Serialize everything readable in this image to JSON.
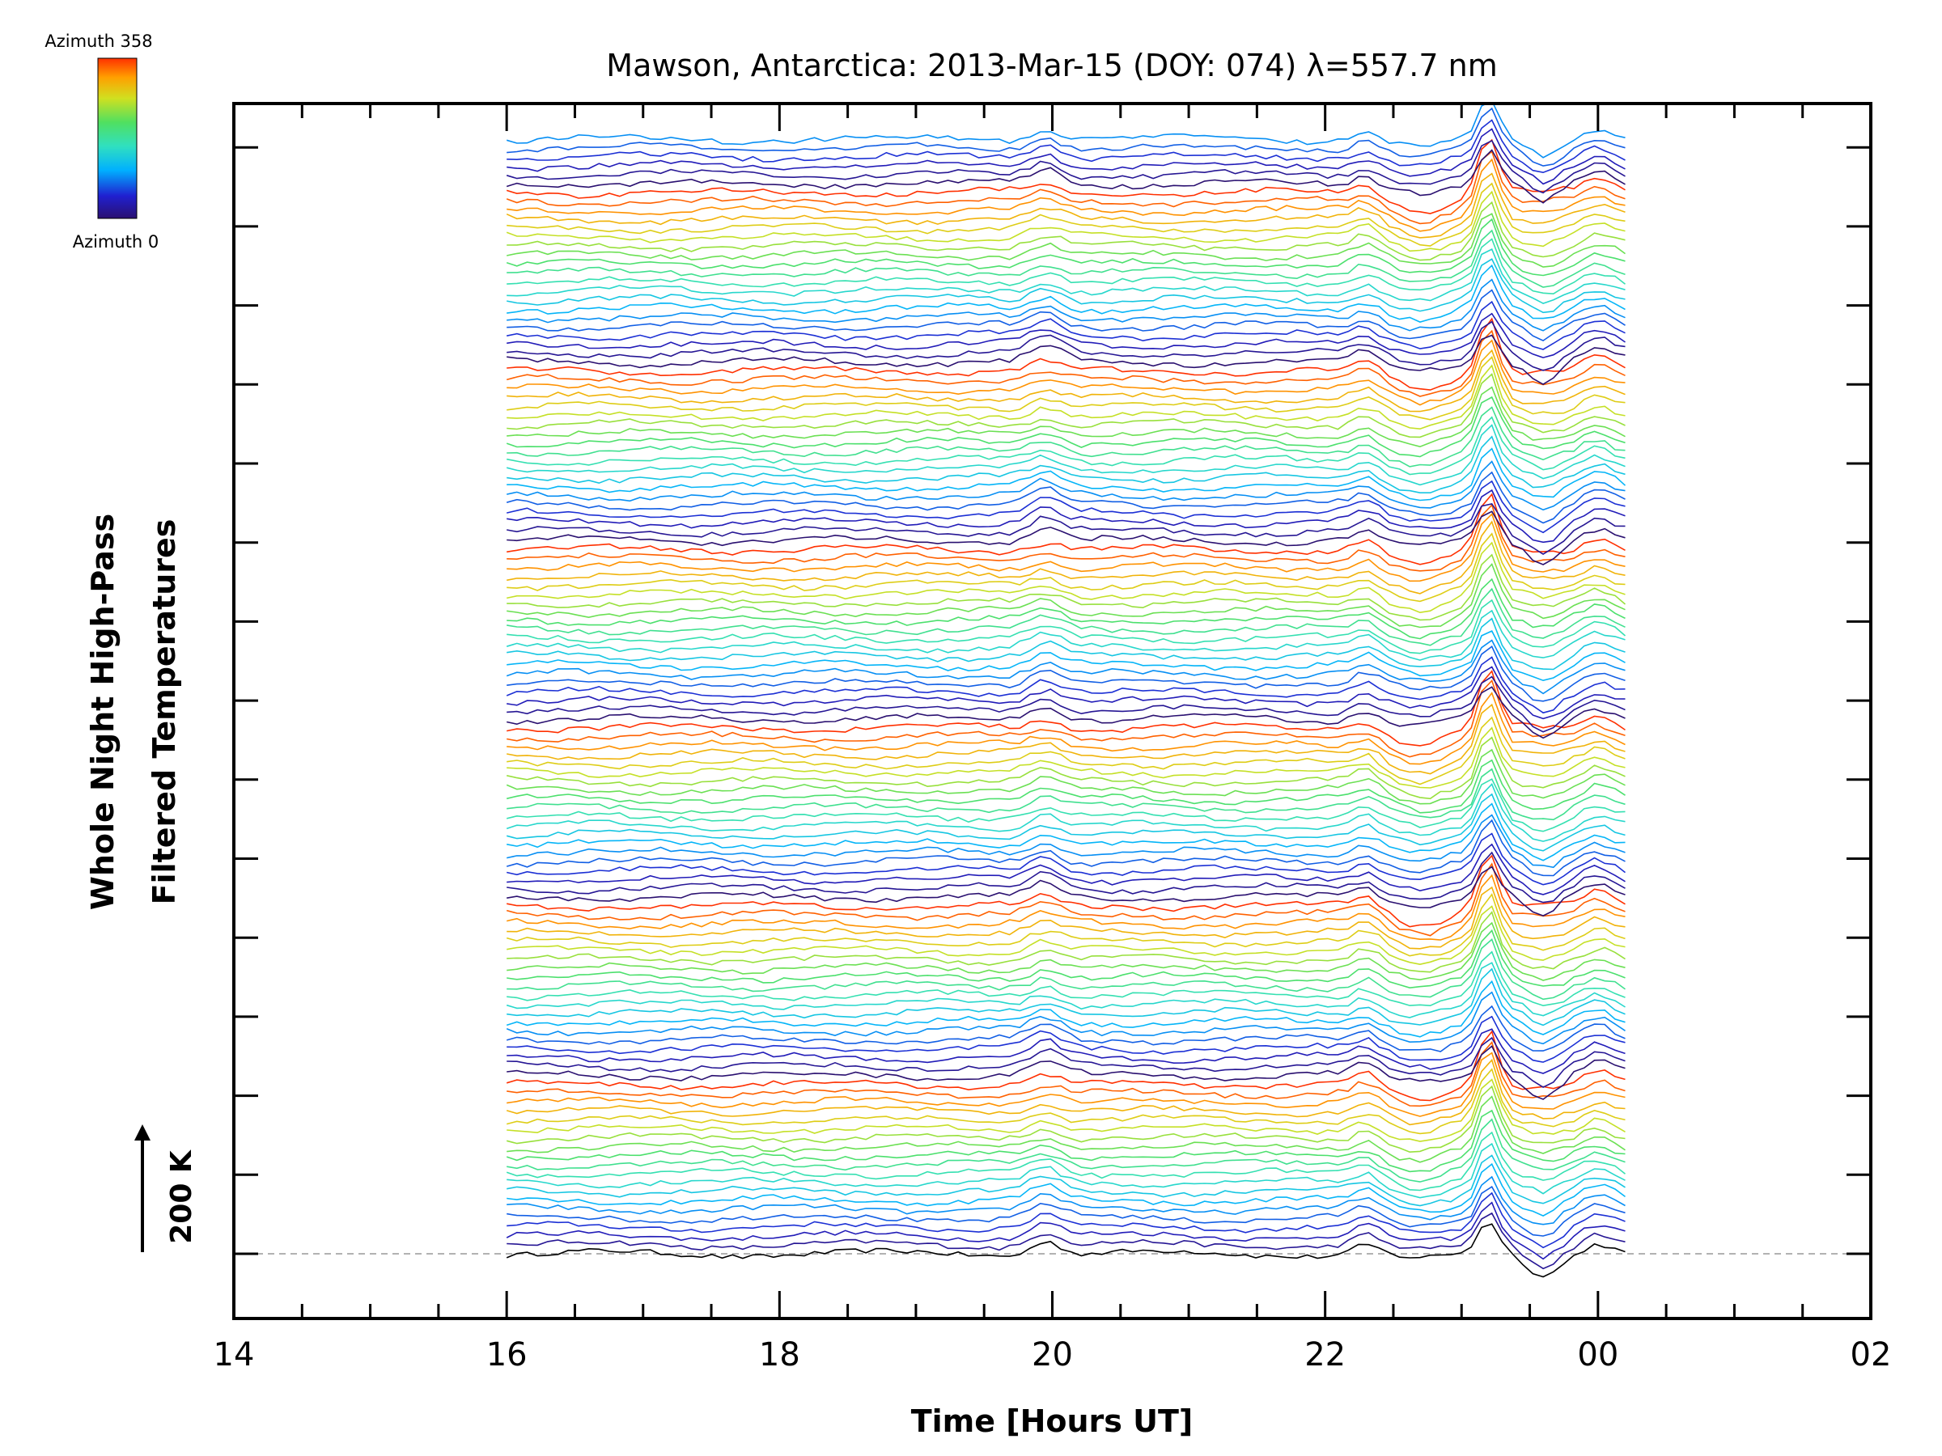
{
  "chart_data": {
    "type": "line",
    "title": "Mawson, Antarctica: 2013-Mar-15 (DOY: 074) λ=557.7 nm",
    "xlabel": "Time [Hours UT]",
    "ylabel_line1": "Whole Night High-Pass",
    "ylabel_line2": "Filtered Temperatures",
    "x_ticks": [
      "14",
      "16",
      "18",
      "20",
      "22",
      "00",
      "02"
    ],
    "x_range_hours_ut": [
      14,
      26
    ],
    "data_range_hours_ut": [
      16.0,
      24.2
    ],
    "scale_bar_label": "200 K",
    "colorbar": {
      "top_label": "Azimuth  358",
      "bottom_label": "Azimuth  0",
      "colormap": "rainbow (blue at 0, red at 358)",
      "colors": [
        "#2a1070",
        "#2020d0",
        "#00b0ff",
        "#30e0c0",
        "#50e060",
        "#d0e020",
        "#ffa000",
        "#ff3000"
      ]
    },
    "series_description_note_only_for_rendering": "stacked offset traces, lowest series black, ascending in azimuth color order",
    "series_count": 126,
    "spike_time_hours_ut": 23.2,
    "dashed_baseline": true,
    "grid": false
  }
}
